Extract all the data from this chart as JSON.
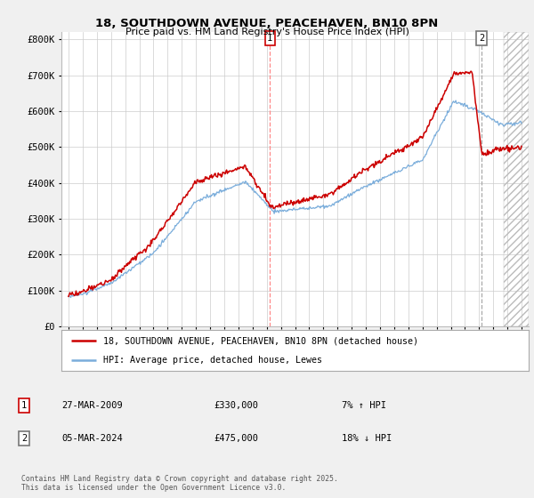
{
  "title_line1": "18, SOUTHDOWN AVENUE, PEACEHAVEN, BN10 8PN",
  "title_line2": "Price paid vs. HM Land Registry's House Price Index (HPI)",
  "ylabel_ticks": [
    "£0",
    "£100K",
    "£200K",
    "£300K",
    "£400K",
    "£500K",
    "£600K",
    "£700K",
    "£800K"
  ],
  "ytick_values": [
    0,
    100000,
    200000,
    300000,
    400000,
    500000,
    600000,
    700000,
    800000
  ],
  "ylim": [
    0,
    820000
  ],
  "xlim_start": 1994.5,
  "xlim_end": 2027.5,
  "red_line_color": "#cc0000",
  "blue_line_color": "#7aaddb",
  "background_color": "#f0f0f0",
  "plot_bg_color": "#ffffff",
  "grid_color": "#cccccc",
  "marker1_x": 2009.23,
  "marker2_x": 2024.18,
  "legend_label1": "18, SOUTHDOWN AVENUE, PEACEHAVEN, BN10 8PN (detached house)",
  "legend_label2": "HPI: Average price, detached house, Lewes",
  "point1_date": "27-MAR-2009",
  "point1_price": "£330,000",
  "point1_hpi": "7% ↑ HPI",
  "point2_date": "05-MAR-2024",
  "point2_price": "£475,000",
  "point2_hpi": "18% ↓ HPI",
  "footer": "Contains HM Land Registry data © Crown copyright and database right 2025.\nThis data is licensed under the Open Government Licence v3.0.",
  "hatch_start": 2025.75
}
